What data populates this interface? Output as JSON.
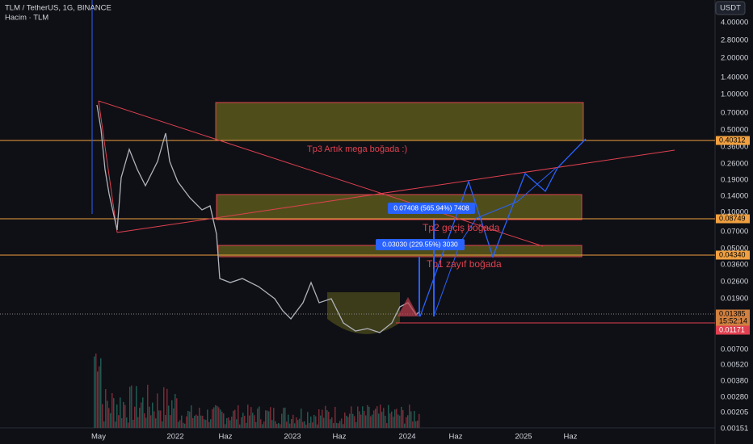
{
  "header": {
    "symbol": "TLM / TetherUS, 1G, BINANCE",
    "volume": "Hacim · TLM",
    "currency": "USDT"
  },
  "price_axis": [
    "4.00000",
    "2.80000",
    "2.00000",
    "1.40000",
    "1.00000",
    "0.70000",
    "0.50000",
    "0.36000",
    "0.26000",
    "0.19000",
    "0.14000",
    "0.10000",
    "0.07000",
    "0.05000",
    "0.03600",
    "0.02600",
    "0.01900",
    "0.00700",
    "0.00520",
    "0.00380",
    "0.00280",
    "0.00205",
    "0.00151"
  ],
  "price_tags": [
    "0.40312",
    "0.08749",
    "0.04340",
    "0.01385",
    "15:52:14",
    "0.01171"
  ],
  "time_axis": [
    "May",
    "2022",
    "Haz",
    "2023",
    "Haz",
    "2024",
    "Haz",
    "2025",
    "Haz"
  ],
  "annotations": [
    "Tp3 Artık mega boğada :)",
    "Tp2 geçiş boğada",
    "Tp1 zayıf boğada"
  ],
  "measure_labels": [
    "0.07408 (565.94%) 7408",
    "0.03030 (229.55%) 3030"
  ]
}
